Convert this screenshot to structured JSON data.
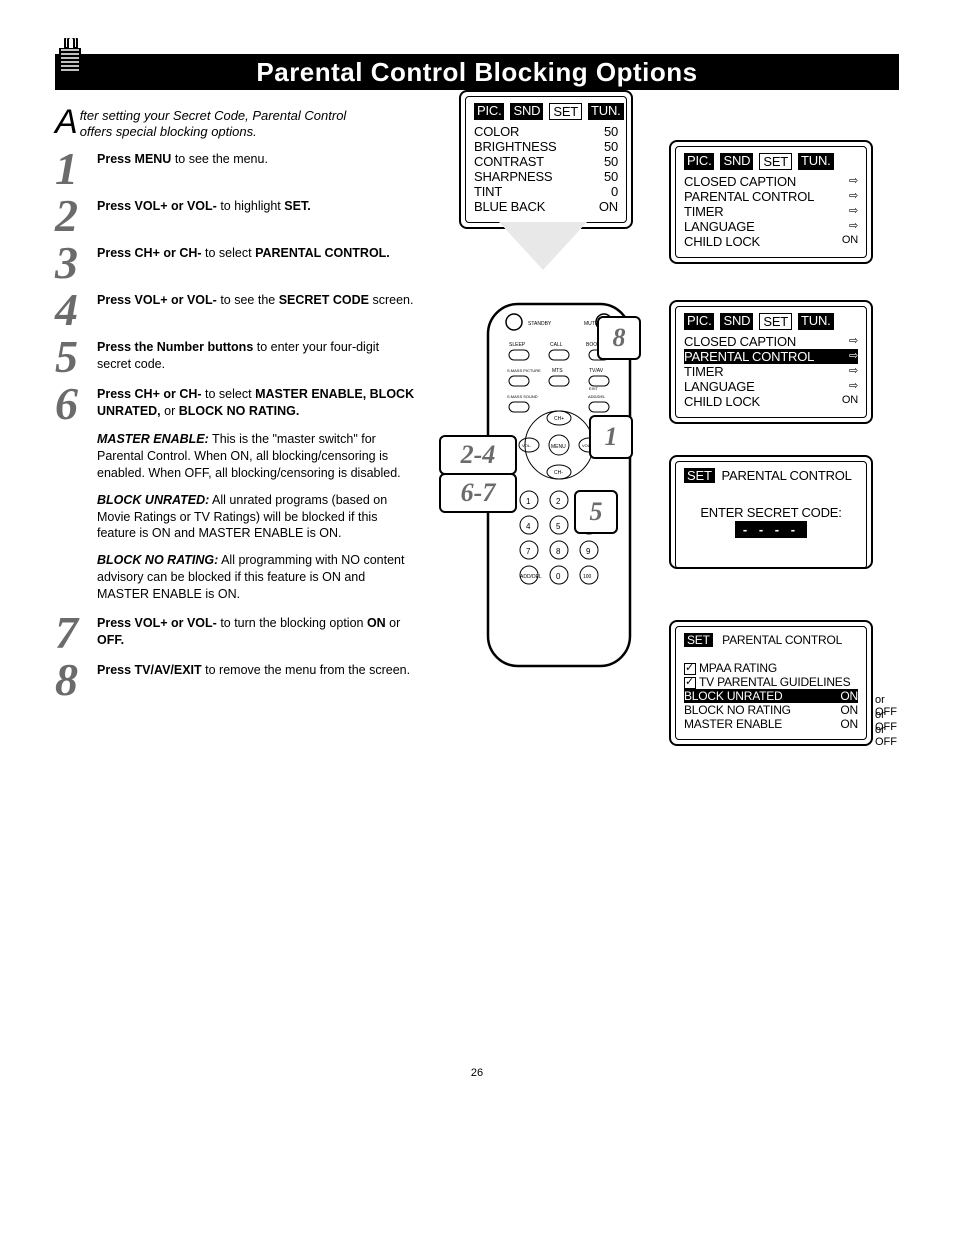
{
  "page_number": "26",
  "title": "Parental Control Blocking Options",
  "intro": "fter setting your Secret Code, Parental Control offers special blocking options.",
  "steps": [
    {
      "num": "1",
      "html": "<span class='bold'>Press MENU</span> to see the menu."
    },
    {
      "num": "2",
      "html": "<span class='bold'>Press VOL+ or VOL-</span> to highlight <span class='bold'>SET.</span>"
    },
    {
      "num": "3",
      "html": "<span class='bold'>Press CH+ or CH-</span> to select <span class='bold'>PARENTAL CONTROL.</span>"
    },
    {
      "num": "4",
      "html": "<span class='bold'>Press VOL+ or VOL-</span> to see the <span class='bold'>SECRET CODE</span> screen."
    },
    {
      "num": "5",
      "html": "<span class='bold'>Press the Number buttons</span> to enter your four-digit secret code."
    },
    {
      "num": "6",
      "html": "<span class='bold'>Press CH+ or CH-</span> to select <span class='bold'>MASTER ENABLE, BLOCK UNRATED,</span> or <span class='bold'>BLOCK NO RATING.</span>"
    },
    {
      "num": "7",
      "html": "<span class='bold'>Press VOL+ or VOL-</span> to turn the blocking option <span class='bold'>ON</span> or <span class='bold'>OFF.</span>"
    },
    {
      "num": "8",
      "html": "<span class='bold'>Press TV/AV/EXIT</span> to remove the menu from the screen."
    }
  ],
  "descriptions": [
    {
      "label": "MASTER ENABLE:",
      "text": " This is the \"master switch\" for Parental Control.  When ON, all blocking/censoring is enabled. When OFF, all blocking/censoring is disabled."
    },
    {
      "label": "BLOCK UNRATED:",
      "text": " All unrated programs (based on Movie Ratings or TV Ratings) will be blocked if this feature is ON and MASTER ENABLE is ON."
    },
    {
      "label": "BLOCK NO RATING:",
      "text": " All programming with NO content advisory can be blocked if this feature is ON and MASTER ENABLE is ON."
    }
  ],
  "osd": {
    "tabs": [
      "PIC.",
      "SND",
      "SET",
      "TUN."
    ],
    "pic_menu": [
      [
        "COLOR",
        "50"
      ],
      [
        "BRIGHTNESS",
        "50"
      ],
      [
        "CONTRAST",
        "50"
      ],
      [
        "SHARPNESS",
        "50"
      ],
      [
        "TINT",
        "0"
      ],
      [
        "BLUE BACK",
        "ON"
      ]
    ],
    "set_menu": [
      [
        "CLOSED CAPTION",
        "⇨"
      ],
      [
        "PARENTAL CONTROL",
        "⇨"
      ],
      [
        "TIMER",
        "⇨"
      ],
      [
        "LANGUAGE",
        "⇨"
      ],
      [
        "CHILD LOCK",
        "ON"
      ]
    ],
    "secret_title": "PARENTAL CONTROL",
    "secret_prompt": "ENTER SECRET CODE:",
    "pc_menu": {
      "title": "PARENTAL CONTROL",
      "items": [
        {
          "check": true,
          "label": "MPAA RATING"
        },
        {
          "check": true,
          "label": "TV PARENTAL GUIDELINES"
        }
      ],
      "rows": [
        [
          "BLOCK UNRATED",
          "ON",
          true
        ],
        [
          "BLOCK NO RATING",
          "ON",
          false
        ],
        [
          "MASTER ENABLE",
          "ON",
          false
        ]
      ],
      "suffix": "or OFF"
    }
  },
  "callouts": {
    "c1": "1",
    "c5": "5",
    "c8": "8",
    "c24": "2-4",
    "c67": "6-7"
  }
}
